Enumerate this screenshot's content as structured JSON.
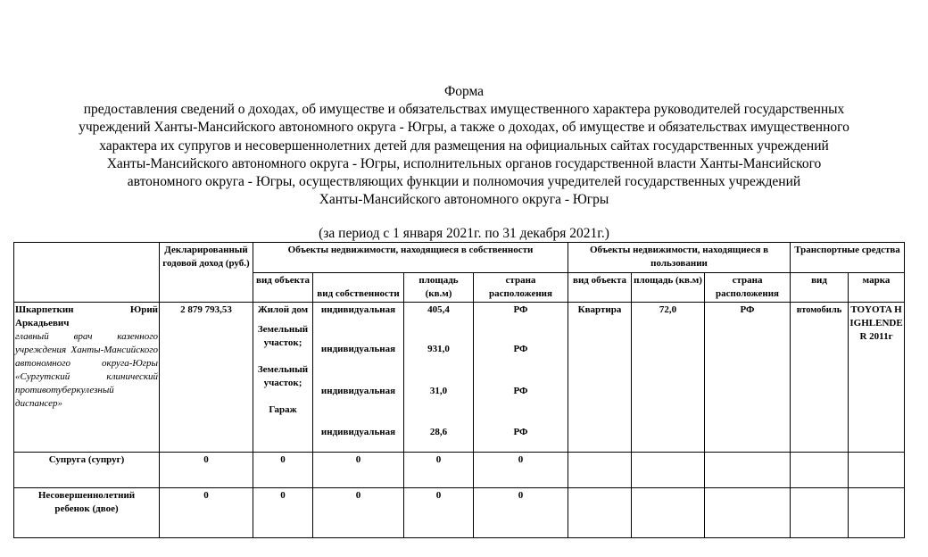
{
  "title_lines": [
    "Форма",
    "предоставления сведений о доходах, об имуществе и обязательствах имущественного характера руководителей государственных",
    "учреждений Ханты-Мансийского автономного округа - Югры, а также о доходах, об имуществе и обязательствах имущественного",
    "характера их супругов и несовершеннолетних детей для размещения на официальных сайтах государственных учреждений",
    "Ханты-Мансийского автономного округа - Югры, исполнительных органов государственной власти Ханты-Мансийского",
    "автономного округа - Югры, осуществляющих функции и полномочия учредителей государственных учреждений",
    "Ханты-Мансийского автономного округа - Югры"
  ],
  "period": "(за период с 1 января 2021г. по 31 декабря 2021г.)",
  "headers": {
    "income": "Декларированный годовой доход (руб.)",
    "owned": "Объекты недвижимости, находящиеся в собственности",
    "used": "Объекты недвижимости, находящиеся в пользовании",
    "transport": "Транспортные средства",
    "obj_type": "вид объекта",
    "own_type": "вид собственности",
    "area": "площадь (кв.м)",
    "country": "страна расположения",
    "u_obj_type": "вид объекта",
    "u_area": "площадь (кв.м)",
    "u_country": "страна расположения",
    "t_type": "вид",
    "t_brand": "марка"
  },
  "main": {
    "name": "Шкарпеткин Юрий Аркадьевич",
    "position": "главный врач казенного учреждения Ханты-Мансийского автономного округа-Югры «Сургутский клинический противотуберкулезный диспансер»",
    "income": "2 879 793,53",
    "owned": [
      {
        "type": "Жилой дом",
        "own": "индивидуальная",
        "area": "405,4",
        "country": "РФ"
      },
      {
        "type": "Земельный участок;",
        "own": "индивидуальная",
        "area": "931,0",
        "country": "РФ"
      },
      {
        "type": "Земельный участок;",
        "own": "индивидуальная",
        "area": "31,0",
        "country": "РФ"
      },
      {
        "type": "Гараж",
        "own": "индивидуальная",
        "area": "28,6",
        "country": "РФ"
      }
    ],
    "used": {
      "type": "Квартира",
      "area": "72,0",
      "country": "РФ"
    },
    "transport": {
      "type": "втомобиль",
      "brand": "TOYOTA HIGHLENDER 2011г"
    }
  },
  "spouse": {
    "label": "Супруга (супруг)",
    "income": "0",
    "type": "0",
    "own": "0",
    "area": "0",
    "country": "0"
  },
  "child": {
    "label": "Несовершеннолетний ребенок (двое)",
    "income": "0",
    "type": "0",
    "own": "0",
    "area": "0",
    "country": "0"
  }
}
